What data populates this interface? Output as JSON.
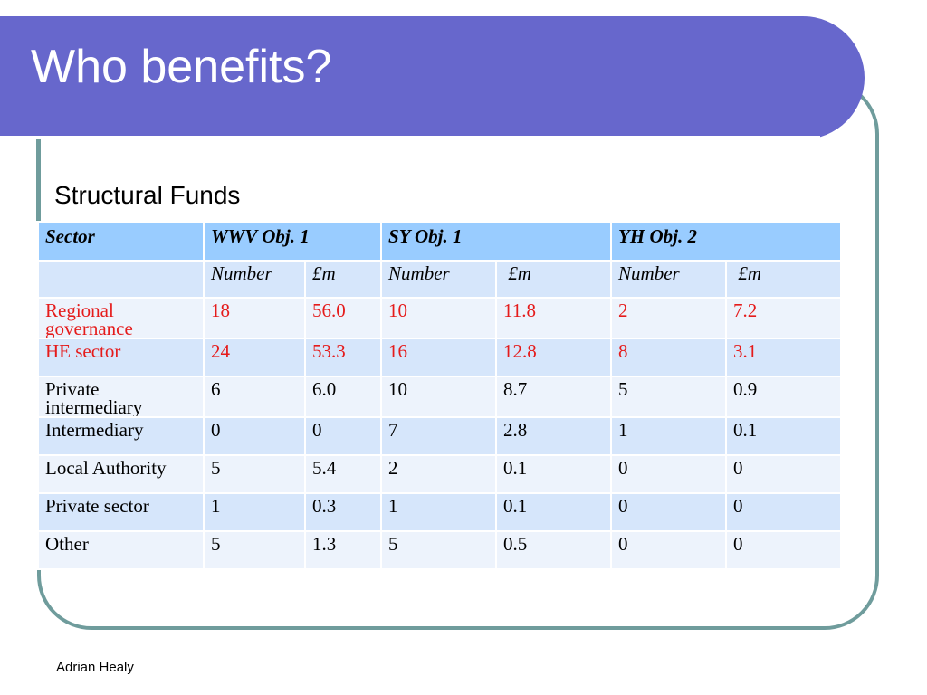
{
  "slide": {
    "title": "Who benefits?",
    "subtitle": "Structural Funds",
    "footer": "Adrian Healy"
  },
  "table": {
    "header": [
      "Sector",
      "WWV Obj. 1",
      "SY Obj. 1",
      "YH Obj. 2"
    ],
    "subheader": [
      "",
      "Number",
      "£m",
      "Number",
      " £m",
      "Number",
      " £m"
    ],
    "rows": [
      {
        "highlight": true,
        "cells": [
          "Regional governance",
          "18",
          "56.0",
          "10",
          "11.8",
          "2",
          "7.2"
        ]
      },
      {
        "highlight": true,
        "cells": [
          "HE sector",
          "24",
          "53.3",
          "16",
          "12.8",
          "8",
          "3.1"
        ]
      },
      {
        "highlight": false,
        "cells": [
          "Private intermediary",
          "6",
          "6.0",
          "10",
          "8.7",
          "5",
          "0.9"
        ]
      },
      {
        "highlight": false,
        "cells": [
          "Intermediary",
          "0",
          "0",
          "7",
          "2.8",
          "1",
          "0.1"
        ]
      },
      {
        "highlight": false,
        "cells": [
          "Local Authority",
          "5",
          "5.4",
          "2",
          "0.1",
          "0",
          "0"
        ]
      },
      {
        "highlight": false,
        "cells": [
          "Private sector",
          "1",
          "0.3",
          "1",
          "0.1",
          "0",
          "0"
        ]
      },
      {
        "highlight": false,
        "cells": [
          "Other",
          "5",
          "1.3",
          "5",
          "0.5",
          "0",
          "0"
        ]
      }
    ]
  },
  "colors": {
    "banner": "#6767cc",
    "frame": "#6f9c9c",
    "header_fill": "#99ccff",
    "highlight_text": "#e51b1b"
  }
}
